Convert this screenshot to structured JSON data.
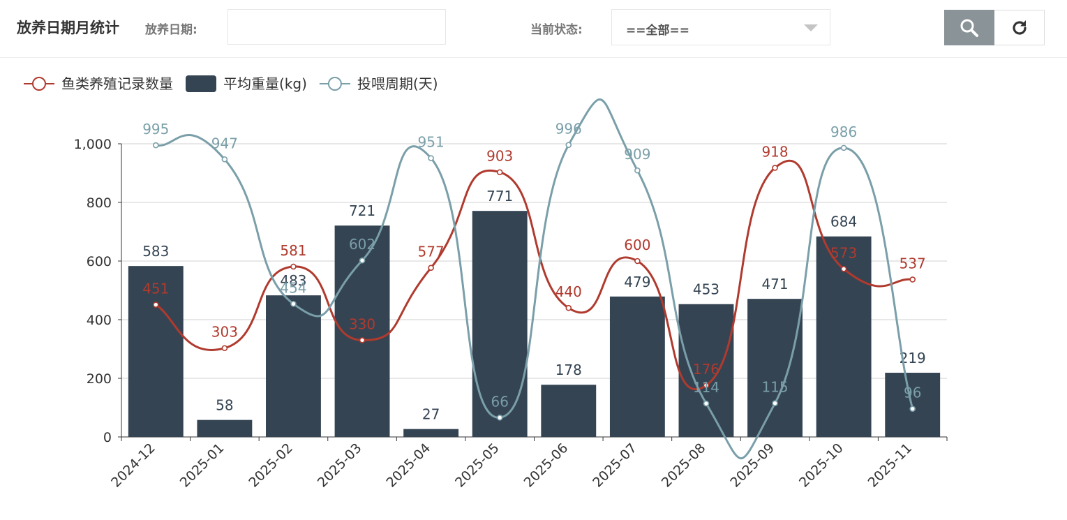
{
  "toolbar": {
    "title": "放养日期月统计",
    "date_label": "放养日期:",
    "date_value": "",
    "status_label": "当前状态:",
    "status_value": "==全部==",
    "search_icon": "search-icon",
    "refresh_icon": "refresh-icon"
  },
  "colors": {
    "count": "#b03a2e",
    "weight": "#344453",
    "cycle": "#7a9fa9"
  },
  "chart_data": {
    "type": "bar",
    "categories": [
      "2024-12",
      "2025-01",
      "2025-02",
      "2025-03",
      "2025-04",
      "2025-05",
      "2025-06",
      "2025-07",
      "2025-08",
      "2025-09",
      "2025-10",
      "2025-11"
    ],
    "series": [
      {
        "name": "鱼类养殖记录数量",
        "type": "line",
        "values": [
          451,
          303,
          581,
          330,
          577,
          903,
          440,
          600,
          176,
          918,
          573,
          537
        ]
      },
      {
        "name": "平均重量(kg)",
        "type": "bar",
        "values": [
          583,
          58,
          483,
          721,
          27,
          771,
          178,
          479,
          453,
          471,
          684,
          219
        ]
      },
      {
        "name": "投喂周期(天)",
        "type": "line",
        "values": [
          995,
          947,
          454,
          602,
          951,
          66,
          996,
          909,
          114,
          115,
          986,
          96
        ]
      }
    ],
    "yticks": [
      "0",
      "200",
      "400",
      "600",
      "800",
      "1,000"
    ],
    "ylim": [
      0,
      1000
    ],
    "legend": "top-left",
    "grid": true
  }
}
